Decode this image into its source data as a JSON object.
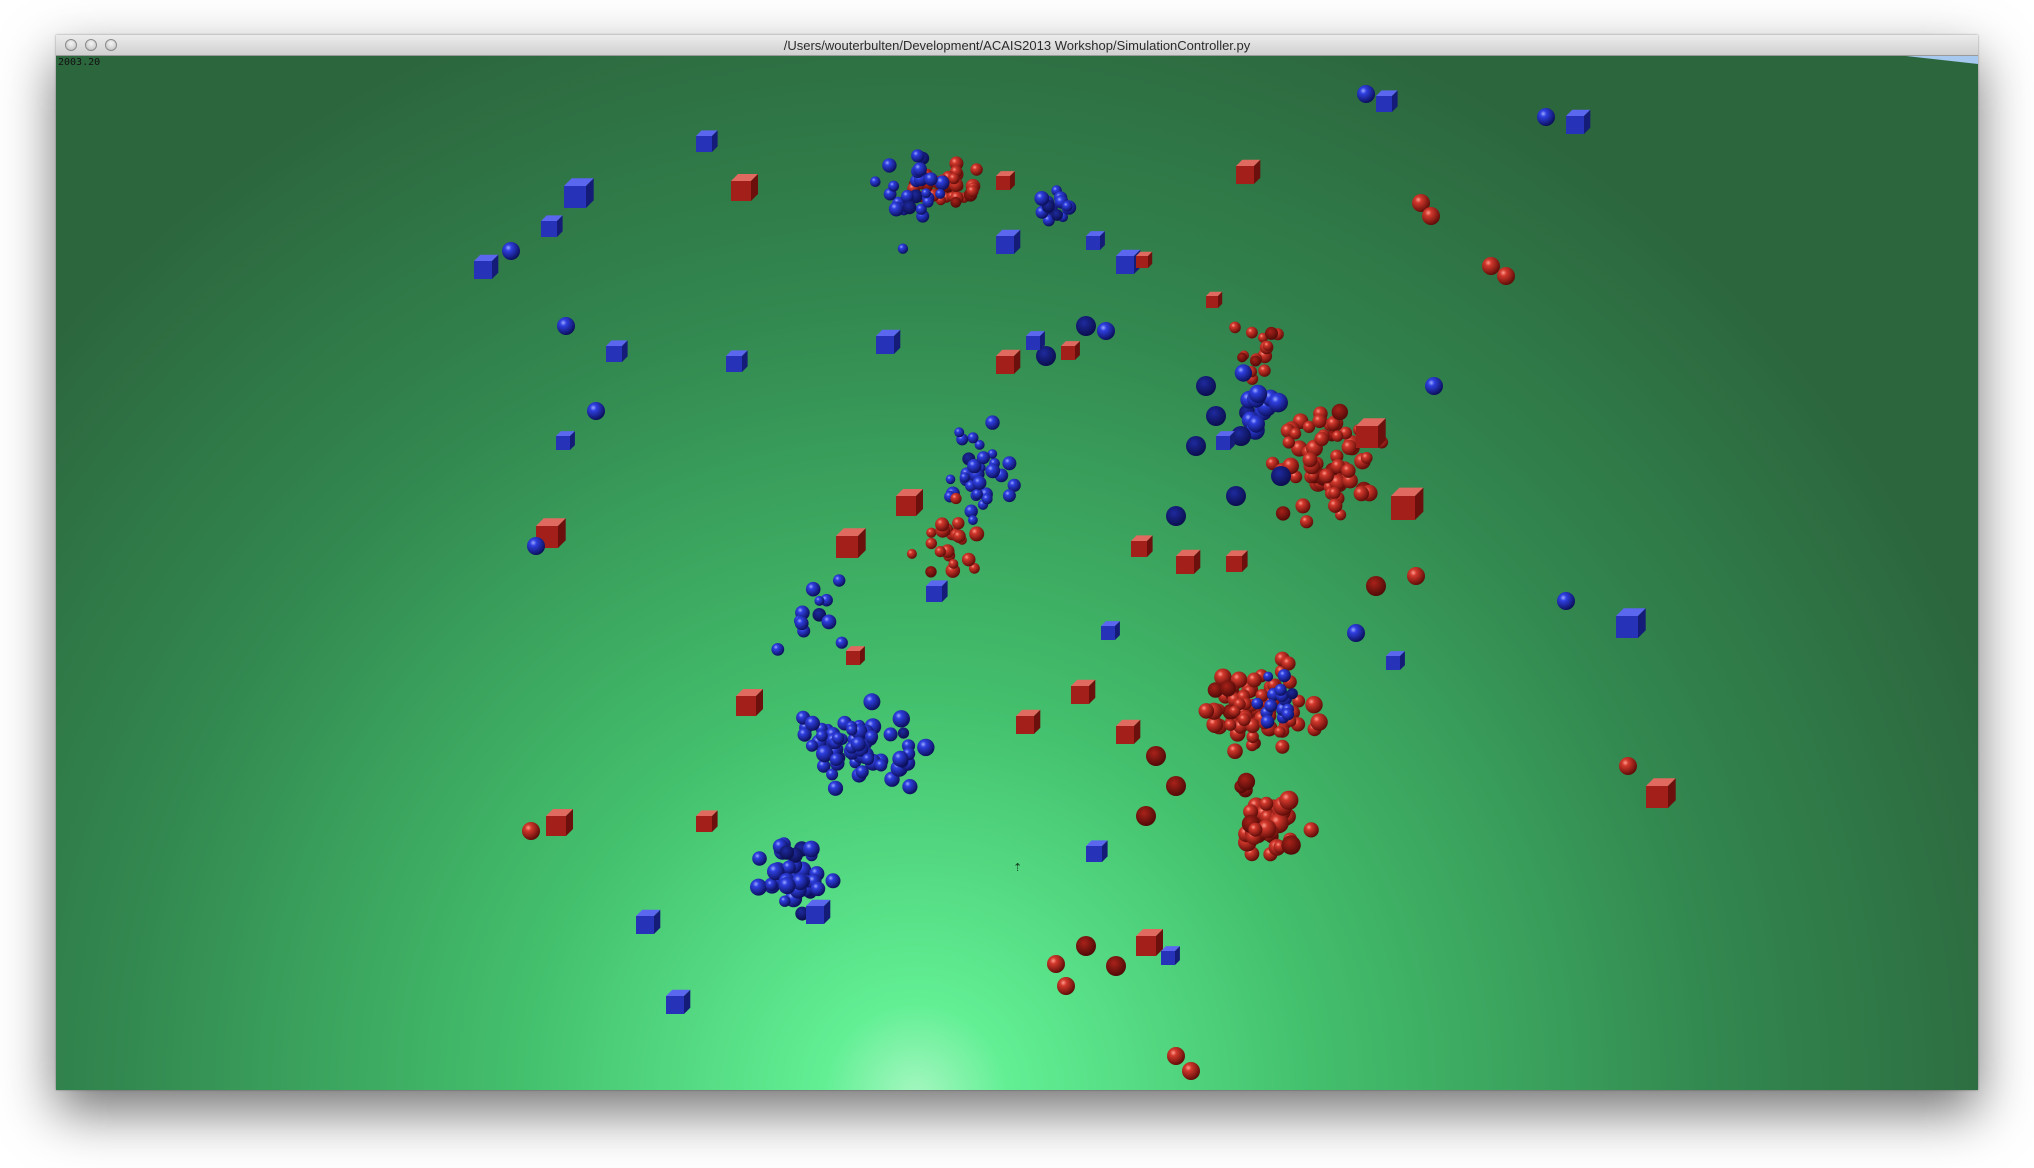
{
  "window": {
    "title": "/Users/wouterbulten/Development/ACAIS2013 Workshop/SimulationController.py"
  },
  "overlay": {
    "fps": "2003.20"
  },
  "colors": {
    "ground_center": "#5cf08f",
    "ground_mid": "#3fb766",
    "ground_edge": "#2e6a3f",
    "sky": "#a7c8ef",
    "red_team": "#b3261e",
    "blue_team": "#2a34c8"
  },
  "icons": {
    "origin_marker": "arrow-up-icon"
  }
}
